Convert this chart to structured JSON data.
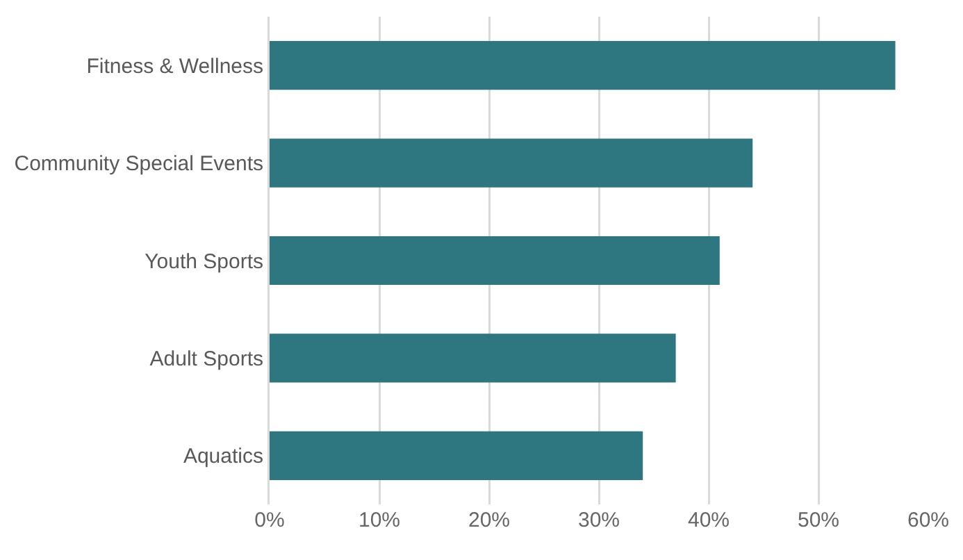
{
  "chart_data": {
    "type": "bar",
    "orientation": "horizontal",
    "categories": [
      "Fitness & Wellness",
      "Community Special Events",
      "Youth Sports",
      "Adult Sports",
      "Aquatics"
    ],
    "values": [
      57,
      44,
      41,
      37,
      34
    ],
    "color": "#2e7780",
    "xlim": [
      0,
      60
    ],
    "xticks": [
      {
        "value": 0,
        "label": "0%"
      },
      {
        "value": 10,
        "label": "10%"
      },
      {
        "value": 20,
        "label": "20%"
      },
      {
        "value": 30,
        "label": "30%"
      },
      {
        "value": 40,
        "label": "40%"
      },
      {
        "value": 50,
        "label": "50%"
      },
      {
        "value": 60,
        "label": "60%"
      }
    ],
    "grid": "x"
  }
}
